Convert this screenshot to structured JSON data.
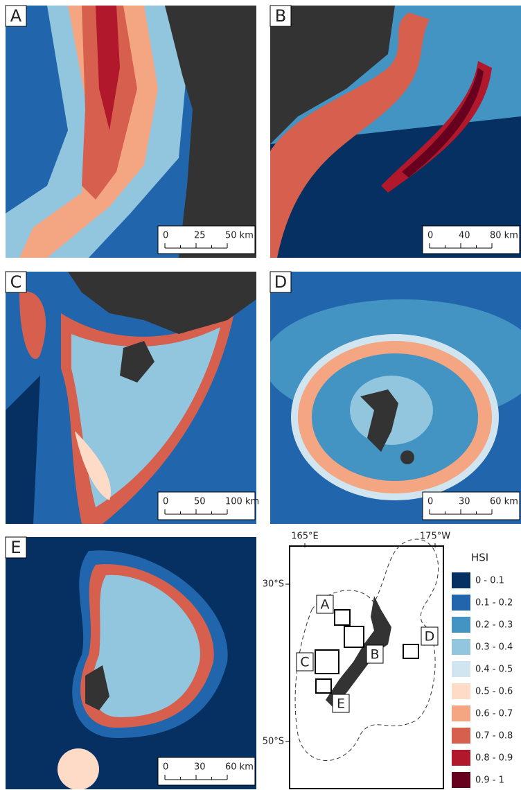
{
  "panels": [
    {
      "label": "A",
      "scale": [
        "0",
        "25",
        "50 km"
      ]
    },
    {
      "label": "B",
      "scale": [
        "0",
        "40",
        "80 km"
      ]
    },
    {
      "label": "C",
      "scale": [
        "0",
        "50",
        "100 km"
      ]
    },
    {
      "label": "D",
      "scale": [
        "0",
        "30",
        "60 km"
      ]
    },
    {
      "label": "E",
      "scale": [
        "0",
        "30",
        "60 km"
      ]
    }
  ],
  "inset": {
    "longitudes": [
      "165°E",
      "175°W"
    ],
    "latitudes": [
      "30°S",
      "50°S"
    ],
    "boxes": [
      "A",
      "B",
      "C",
      "D",
      "E"
    ]
  },
  "legend": {
    "title": "HSI",
    "items": [
      {
        "label": "0 - 0.1",
        "color": "#053061"
      },
      {
        "label": "0.1 - 0.2",
        "color": "#2166ac"
      },
      {
        "label": "0.2 - 0.3",
        "color": "#4393c3"
      },
      {
        "label": "0.3 - 0.4",
        "color": "#92c5de"
      },
      {
        "label": "0.4 - 0.5",
        "color": "#d1e5f0"
      },
      {
        "label": "0.5 - 0.6",
        "color": "#fddbc7"
      },
      {
        "label": "0.6 - 0.7",
        "color": "#f4a582"
      },
      {
        "label": "0.7 - 0.8",
        "color": "#d6604d"
      },
      {
        "label": "0.8 - 0.9",
        "color": "#b2182b"
      },
      {
        "label": "0.9 - 1",
        "color": "#67001f"
      }
    ]
  }
}
